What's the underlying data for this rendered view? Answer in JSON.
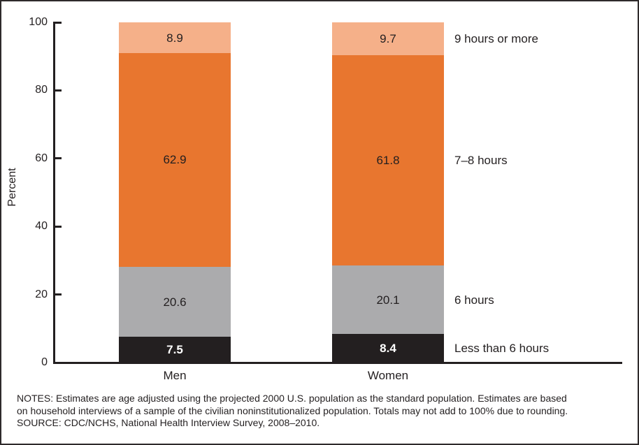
{
  "chart_data": {
    "type": "bar",
    "stacked": true,
    "percent_stacked": true,
    "categories": [
      "Men",
      "Women"
    ],
    "series": [
      {
        "name": "Less than 6 hours",
        "values": [
          7.5,
          8.4
        ],
        "color": "#231f20",
        "label_style": "white"
      },
      {
        "name": "6 hours",
        "values": [
          20.6,
          20.1
        ],
        "color": "#ababad",
        "label_style": "dark"
      },
      {
        "name": "7–8 hours",
        "values": [
          62.9,
          61.8
        ],
        "color": "#e8762f",
        "label_style": "dark"
      },
      {
        "name": "9 hours or more",
        "values": [
          8.9,
          9.7
        ],
        "color": "#f5b089",
        "label_style": "dark"
      }
    ],
    "title": "",
    "xlabel": "",
    "ylabel": "Percent",
    "ylim": [
      0,
      100
    ],
    "yticks": [
      0,
      20,
      40,
      60,
      80,
      100
    ],
    "grid": false,
    "legend_position": "right-of-bars",
    "axis_color": "#231f20"
  },
  "notes": {
    "line1": "NOTES: Estimates are age adjusted using the projected 2000 U.S. population as the standard population. Estimates are based",
    "line2": "on household interviews of a sample of the civilian noninstitutionalized population. Totals may not add to 100% due to rounding.",
    "line3": "SOURCE: CDC/NCHS, National Health Interview Survey, 2008–2010."
  }
}
